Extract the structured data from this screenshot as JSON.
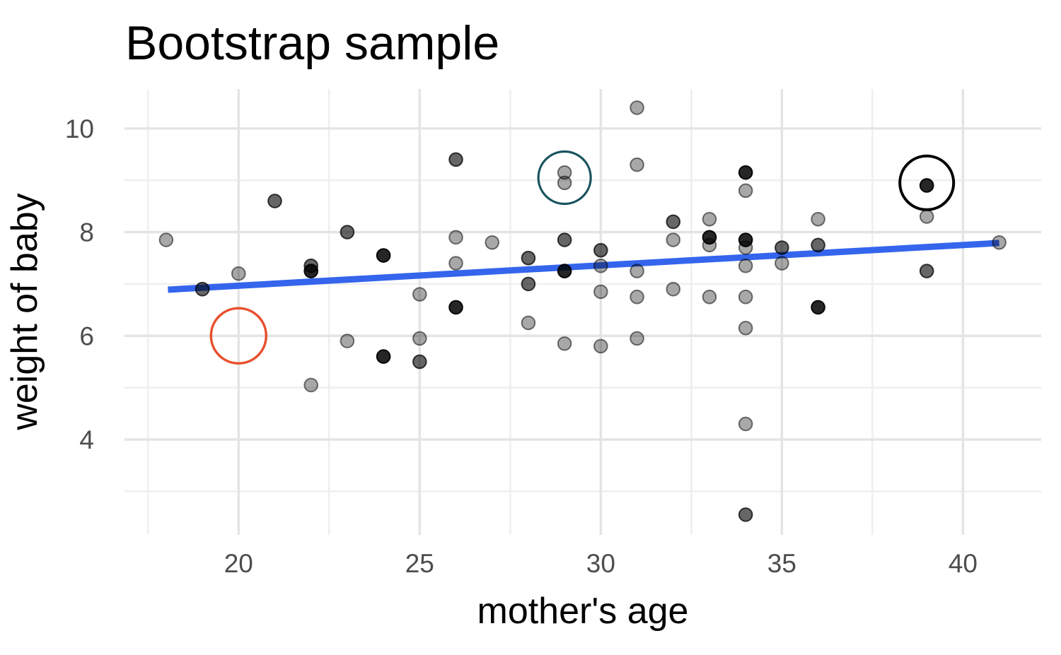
{
  "chart_data": {
    "type": "scatter",
    "title": "Bootstrap sample",
    "xlabel": "mother's age",
    "ylabel": "weight of baby",
    "xlim": [
      16.85,
      42.16
    ],
    "ylim": [
      2.16,
      10.76
    ],
    "x_ticks": [
      20,
      25,
      30,
      35,
      40
    ],
    "y_ticks": [
      4,
      6,
      8,
      10
    ],
    "x_minor_ticks": [
      17.5,
      22.5,
      27.5,
      32.5,
      37.5
    ],
    "y_minor_ticks": [
      3,
      5,
      7,
      9
    ],
    "grid": "on",
    "legend": "none",
    "points": [
      [
        18,
        7.85,
        1
      ],
      [
        19,
        6.9,
        2
      ],
      [
        20,
        7.2,
        1
      ],
      [
        21,
        8.6,
        2
      ],
      [
        22,
        7.35,
        2
      ],
      [
        22,
        7.25,
        3
      ],
      [
        22,
        5.05,
        1
      ],
      [
        23,
        8.0,
        2
      ],
      [
        23,
        5.9,
        1
      ],
      [
        24,
        7.55,
        3
      ],
      [
        24,
        5.6,
        3
      ],
      [
        25,
        6.8,
        1
      ],
      [
        25,
        5.95,
        1
      ],
      [
        25,
        5.5,
        2
      ],
      [
        26,
        9.4,
        2
      ],
      [
        26,
        7.9,
        1
      ],
      [
        26,
        7.4,
        1
      ],
      [
        26,
        6.55,
        3
      ],
      [
        27,
        7.8,
        1
      ],
      [
        28,
        7.5,
        2
      ],
      [
        28,
        7.0,
        2
      ],
      [
        28,
        6.25,
        1
      ],
      [
        29,
        9.15,
        1
      ],
      [
        29,
        8.95,
        1
      ],
      [
        29,
        7.85,
        2
      ],
      [
        29,
        7.25,
        3
      ],
      [
        29,
        5.85,
        1
      ],
      [
        30,
        7.65,
        2
      ],
      [
        30,
        7.35,
        1
      ],
      [
        30,
        6.85,
        1
      ],
      [
        30,
        5.8,
        1
      ],
      [
        31,
        10.4,
        1
      ],
      [
        31,
        9.3,
        1
      ],
      [
        31,
        7.25,
        1
      ],
      [
        31,
        6.75,
        1
      ],
      [
        31,
        5.95,
        1
      ],
      [
        32,
        8.2,
        2
      ],
      [
        32,
        7.85,
        1
      ],
      [
        32,
        6.9,
        1
      ],
      [
        33,
        8.25,
        1
      ],
      [
        33,
        7.9,
        3
      ],
      [
        33,
        7.75,
        1
      ],
      [
        33,
        6.75,
        1
      ],
      [
        34,
        9.15,
        3
      ],
      [
        34,
        8.8,
        1
      ],
      [
        34,
        7.85,
        3
      ],
      [
        34,
        7.7,
        1
      ],
      [
        34,
        7.35,
        1
      ],
      [
        34,
        6.75,
        1
      ],
      [
        34,
        6.15,
        1
      ],
      [
        34,
        4.3,
        1
      ],
      [
        34,
        2.55,
        2
      ],
      [
        35,
        7.7,
        2
      ],
      [
        35,
        7.4,
        1
      ],
      [
        36,
        8.25,
        1
      ],
      [
        36,
        7.75,
        2
      ],
      [
        36,
        6.55,
        3
      ],
      [
        39,
        8.9,
        3
      ],
      [
        39,
        8.3,
        1
      ],
      [
        39,
        7.25,
        2
      ],
      [
        41,
        7.8,
        1
      ]
    ],
    "trend_line": {
      "x1": 18.05,
      "y1": 6.89,
      "x2": 41.0,
      "y2": 7.79,
      "color": "#3465EC",
      "width": 9
    },
    "annotations": [
      {
        "shape": "circle",
        "x": 20,
        "y": 6.0,
        "r": 39,
        "color": "#E8502E",
        "stroke_width": 3.5,
        "name": "red-circle"
      },
      {
        "shape": "circle",
        "x": 29,
        "y": 9.05,
        "r": 37,
        "color": "#19535F",
        "stroke_width": 3.2,
        "name": "teal-circle"
      },
      {
        "shape": "circle",
        "x": 39,
        "y": 8.95,
        "r": 38,
        "color": "#000000",
        "stroke_width": 4,
        "name": "black-circle"
      }
    ],
    "colors": {
      "point_base": "#000000",
      "point_alpha_by_shade": [
        0.34,
        0.6,
        0.85
      ],
      "point_stroke_alpha_by_shade": [
        0.52,
        0.74,
        0.95
      ],
      "grid_major": "#E4E4E4",
      "grid_minor": "#EFEFEF",
      "tick_label": "#4D4D4D",
      "title": "#000000",
      "axis_title": "#000000",
      "background": "#FFFFFF"
    }
  }
}
